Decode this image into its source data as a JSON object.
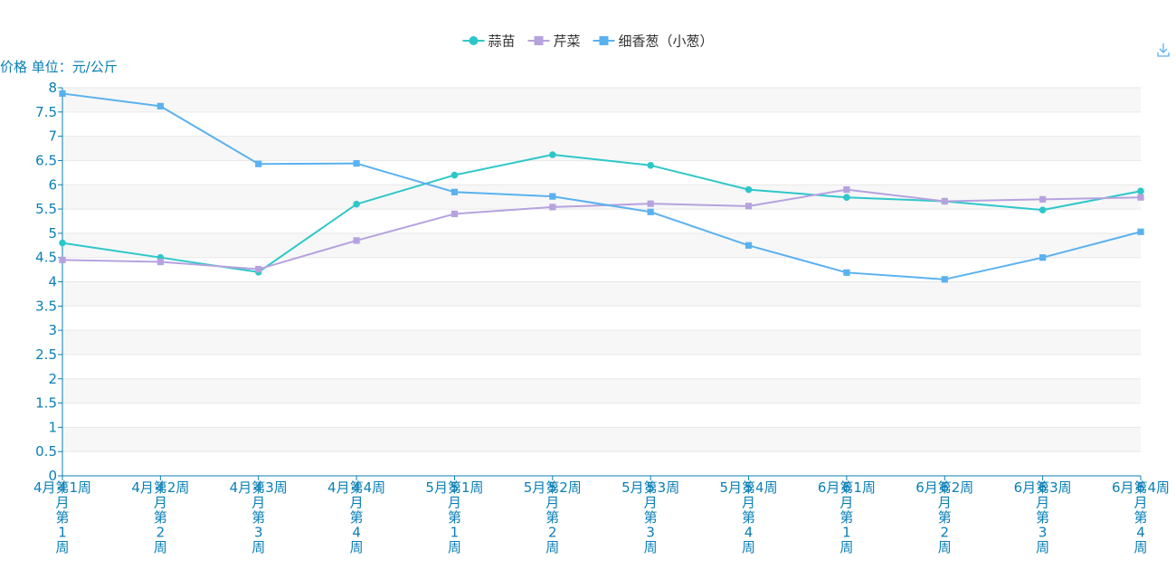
{
  "chart_data": {
    "type": "line",
    "ylabel": "价格 单位：元/公斤",
    "ylim": [
      0,
      8
    ],
    "yticks": [
      "0",
      "0.5",
      "1",
      "1.5",
      "2",
      "2.5",
      "3",
      "3.5",
      "4",
      "4.5",
      "5",
      "5.5",
      "6",
      "6.5",
      "7",
      "7.5",
      "8"
    ],
    "categories": [
      "4月第1周",
      "4月第2周",
      "4月第3周",
      "4月第4周",
      "5月第1周",
      "5月第2周",
      "5月第3周",
      "5月第4周",
      "6月第1周",
      "6月第2周",
      "6月第3周",
      "6月第4周"
    ],
    "legend_position": "top-center",
    "grid": "horizontal-bands",
    "series": [
      {
        "name": "蒜苗",
        "color": "#2ec7c9",
        "marker": "circle",
        "values": [
          4.8,
          4.5,
          4.2,
          5.6,
          6.2,
          6.62,
          6.4,
          5.9,
          5.74,
          5.66,
          5.48,
          5.87
        ]
      },
      {
        "name": "芹菜",
        "color": "#b6a2de",
        "marker": "square",
        "values": [
          4.45,
          4.41,
          4.26,
          4.85,
          5.4,
          5.54,
          5.61,
          5.56,
          5.9,
          5.66,
          5.7,
          5.74
        ]
      },
      {
        "name": "细香葱（小葱）",
        "color": "#5ab1ef",
        "marker": "square",
        "values": [
          7.88,
          7.62,
          6.43,
          6.44,
          5.85,
          5.76,
          5.44,
          4.75,
          4.19,
          4.05,
          4.5,
          5.03
        ]
      }
    ]
  },
  "toolbox": {
    "icon": "download-icon",
    "color": "#5ab1ef"
  },
  "colors": {
    "axis": "#0a7fb5",
    "band": "#f7f7f7",
    "grid": "#e8e8e8"
  }
}
